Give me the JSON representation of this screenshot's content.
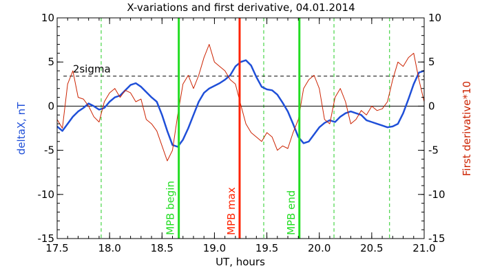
{
  "chart_data": {
    "type": "line",
    "title": "X-variations and first derivative, 04.01.2014",
    "xlabel": "UT, hours",
    "ylabel_left": "deltaX, nT",
    "ylabel_right": "First derivative*10",
    "xlim": [
      17.5,
      21.0
    ],
    "ylim": [
      -15,
      10
    ],
    "x_ticks": [
      17.5,
      18.0,
      18.5,
      19.0,
      19.5,
      20.0,
      20.5,
      21.0
    ],
    "x_tick_labels": [
      "17.5",
      "18.0",
      "18.5",
      "19.0",
      "19.5",
      "20.0",
      "20.5",
      "21.0"
    ],
    "y_ticks": [
      -15,
      -10,
      -5,
      0,
      5,
      10
    ],
    "y_tick_labels": [
      "-15",
      "-10",
      "-5",
      "0",
      "5",
      "10"
    ],
    "grid": false,
    "colors": {
      "deltaX": "#1f4fd8",
      "derivative": "#cc2200",
      "mpb_max": "#ff2200",
      "mpb_bounds": "#22dd22",
      "guides": "#22cc22",
      "reference": "#000000"
    },
    "sigma": {
      "label": "2sigma",
      "value": 3.4
    },
    "zero_line": 0,
    "markers": [
      {
        "label": "MPB begin",
        "x": 18.66,
        "kind": "bound"
      },
      {
        "label": "MPB max",
        "x": 19.24,
        "kind": "max"
      },
      {
        "label": "MPB end",
        "x": 19.81,
        "kind": "bound"
      }
    ],
    "guide_lines_x": [
      17.92,
      19.47,
      20.14,
      20.67
    ],
    "series": [
      {
        "key": "deltaX",
        "axis": "left",
        "x": [
          17.5,
          17.55,
          17.6,
          17.65,
          17.7,
          17.75,
          17.8,
          17.85,
          17.9,
          17.95,
          18.0,
          18.05,
          18.1,
          18.15,
          18.2,
          18.25,
          18.3,
          18.35,
          18.4,
          18.45,
          18.5,
          18.55,
          18.6,
          18.65,
          18.7,
          18.75,
          18.8,
          18.85,
          18.9,
          18.95,
          19.0,
          19.05,
          19.1,
          19.15,
          19.2,
          19.25,
          19.3,
          19.35,
          19.4,
          19.45,
          19.5,
          19.55,
          19.6,
          19.65,
          19.7,
          19.75,
          19.8,
          19.85,
          19.9,
          19.95,
          20.0,
          20.05,
          20.1,
          20.15,
          20.2,
          20.25,
          20.3,
          20.35,
          20.4,
          20.45,
          20.5,
          20.55,
          20.6,
          20.65,
          20.7,
          20.75,
          20.8,
          20.85,
          20.9,
          20.95,
          21.0
        ],
        "values": [
          -2.3,
          -2.8,
          -2.0,
          -1.2,
          -0.6,
          -0.2,
          0.3,
          0.0,
          -0.4,
          -0.2,
          0.5,
          1.0,
          1.2,
          1.8,
          2.4,
          2.6,
          2.2,
          1.6,
          1.0,
          0.5,
          -1.0,
          -2.8,
          -4.4,
          -4.6,
          -3.8,
          -2.5,
          -1.0,
          0.5,
          1.5,
          2.0,
          2.3,
          2.6,
          3.0,
          3.5,
          4.5,
          5.0,
          5.2,
          4.6,
          3.3,
          2.2,
          1.9,
          1.8,
          1.3,
          0.4,
          -0.6,
          -2.0,
          -3.5,
          -4.2,
          -4.0,
          -3.2,
          -2.4,
          -1.9,
          -1.6,
          -1.8,
          -1.2,
          -0.8,
          -0.6,
          -0.8,
          -1.0,
          -1.6,
          -1.8,
          -2.0,
          -2.2,
          -2.4,
          -2.3,
          -2.0,
          -0.8,
          0.8,
          2.5,
          3.8,
          4.0
        ]
      },
      {
        "key": "derivative",
        "axis": "right",
        "x": [
          17.5,
          17.55,
          17.6,
          17.65,
          17.7,
          17.75,
          17.8,
          17.85,
          17.9,
          17.95,
          18.0,
          18.05,
          18.1,
          18.15,
          18.2,
          18.25,
          18.3,
          18.35,
          18.4,
          18.45,
          18.5,
          18.55,
          18.6,
          18.65,
          18.7,
          18.75,
          18.8,
          18.85,
          18.9,
          18.95,
          19.0,
          19.05,
          19.1,
          19.15,
          19.2,
          19.25,
          19.3,
          19.35,
          19.4,
          19.45,
          19.5,
          19.55,
          19.6,
          19.65,
          19.7,
          19.75,
          19.8,
          19.85,
          19.9,
          19.95,
          20.0,
          20.05,
          20.1,
          20.15,
          20.2,
          20.25,
          20.3,
          20.35,
          20.4,
          20.45,
          20.5,
          20.55,
          20.6,
          20.65,
          20.7,
          20.75,
          20.8,
          20.85,
          20.9,
          20.95,
          21.0
        ],
        "values": [
          -1.5,
          -2.5,
          2.5,
          4.0,
          1.0,
          0.8,
          0.0,
          -1.2,
          -1.8,
          0.5,
          1.5,
          2.0,
          1.0,
          1.8,
          1.5,
          0.5,
          0.8,
          -1.5,
          -2.0,
          -2.8,
          -4.5,
          -6.2,
          -5.0,
          -1.0,
          2.5,
          3.5,
          2.0,
          3.5,
          5.5,
          7.0,
          5.0,
          4.5,
          4.0,
          3.0,
          2.5,
          0.2,
          -2.0,
          -3.0,
          -3.5,
          -4.0,
          -3.0,
          -3.5,
          -5.0,
          -4.5,
          -4.8,
          -3.0,
          -1.5,
          2.0,
          3.0,
          3.5,
          2.0,
          -1.5,
          -2.0,
          1.0,
          2.0,
          0.5,
          -2.0,
          -1.5,
          -0.5,
          -1.0,
          0.0,
          -0.5,
          -0.3,
          0.5,
          3.0,
          5.0,
          4.5,
          5.5,
          6.0,
          3.0,
          0.5
        ]
      }
    ]
  }
}
